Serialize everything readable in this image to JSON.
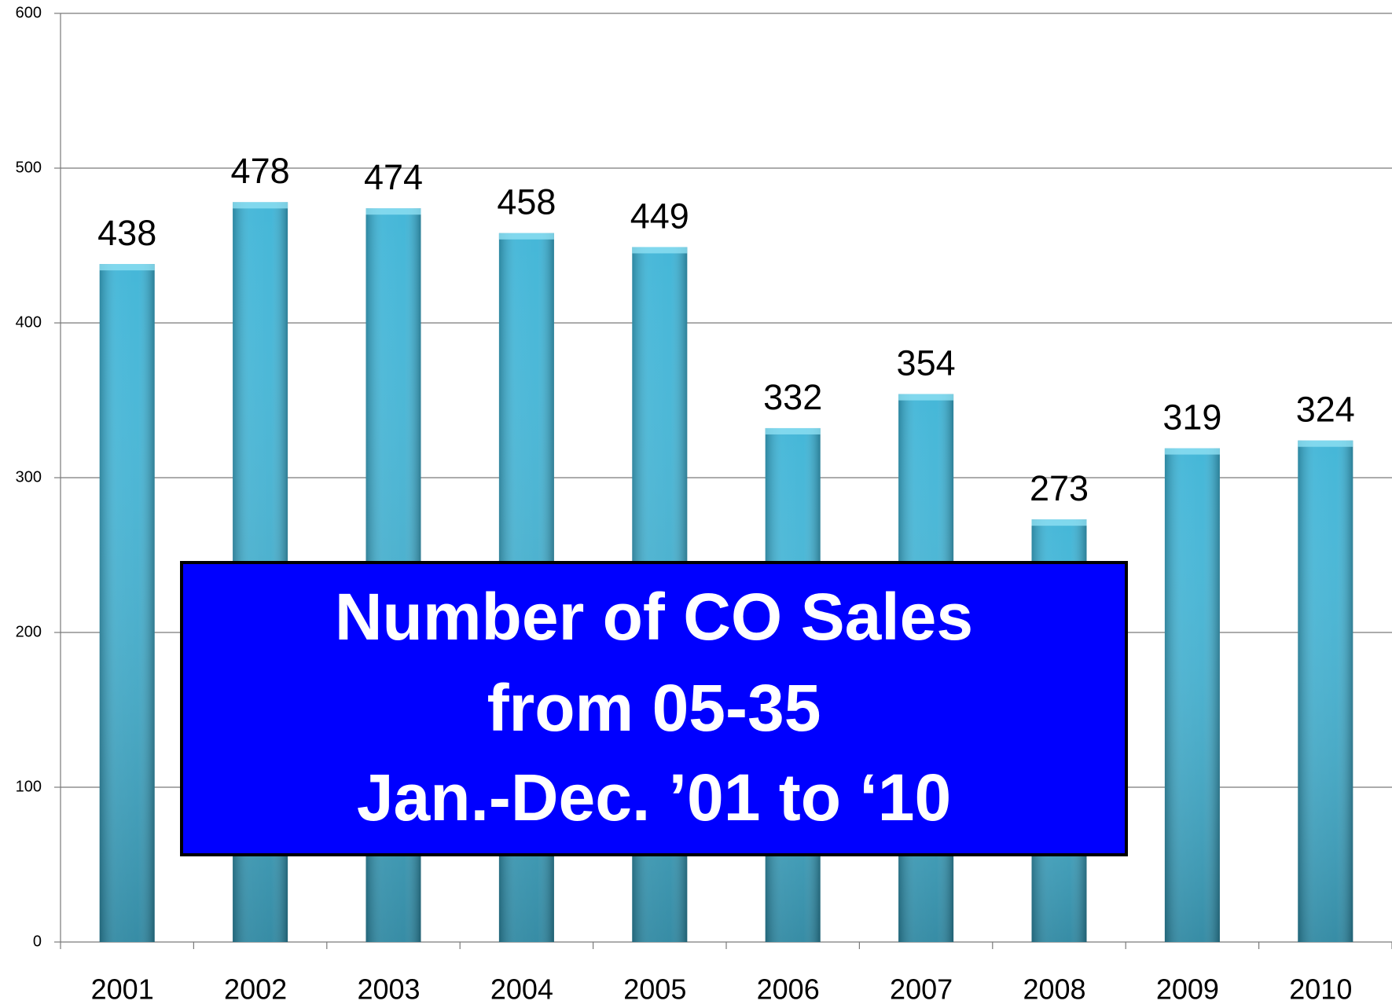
{
  "chart_data": {
    "type": "bar",
    "annotation": [
      "Number of CO Sales",
      "from 05-35",
      "Jan.-Dec. ’01 to ‘10"
    ],
    "categories": [
      "2001",
      "2002",
      "2003",
      "2004",
      "2005",
      "2006",
      "2007",
      "2008",
      "2009",
      "2010"
    ],
    "values": [
      438,
      478,
      474,
      458,
      449,
      332,
      354,
      273,
      319,
      324
    ],
    "color": "#3bb3d6",
    "ylim": [
      0,
      600
    ],
    "yticks": [
      0,
      100,
      200,
      300,
      400,
      500,
      600
    ],
    "grid": true
  }
}
